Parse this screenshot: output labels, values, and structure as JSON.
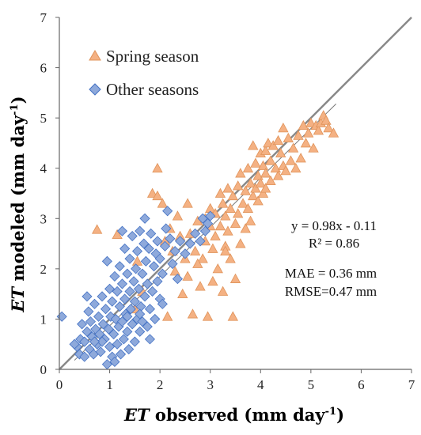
{
  "chart_data": {
    "type": "scatter",
    "xlim": [
      0,
      7
    ],
    "ylim": [
      0,
      7
    ],
    "x_ticks": [
      0,
      1,
      2,
      3,
      4,
      5,
      6,
      7
    ],
    "y_ticks": [
      0,
      1,
      2,
      3,
      4,
      5,
      6,
      7
    ],
    "grid": false,
    "legend_placement": "top-left",
    "xlabel": {
      "italic": "ET",
      "text": " observed (mm day",
      "sup": "-1",
      "end": ")"
    },
    "ylabel": {
      "italic": "ET",
      "text": " modeled (mm day",
      "sup": "-1",
      "end": ")"
    },
    "one_to_one_line": {
      "from": [
        0,
        0
      ],
      "to": [
        7,
        7
      ],
      "color": "#888888"
    },
    "fit_line": {
      "from": [
        0.3,
        0.18
      ],
      "to": [
        5.5,
        5.28
      ],
      "color": "#777777"
    },
    "annotations": {
      "equation": "y = 0.98x - 0.11",
      "r2": "R² = 0.86",
      "mae": "MAE = 0.36 mm",
      "rmse": "RMSE=0.47 mm"
    },
    "series": [
      {
        "name": "Spring season",
        "marker": "triangle",
        "color": "#F4B183",
        "stroke": "#E0935A",
        "points": [
          [
            0.75,
            2.78
          ],
          [
            1.15,
            2.68
          ],
          [
            1.55,
            2.15
          ],
          [
            1.65,
            1.55
          ],
          [
            1.5,
            1.2
          ],
          [
            1.85,
            3.5
          ],
          [
            1.95,
            3.45
          ],
          [
            1.95,
            4.0
          ],
          [
            2.05,
            3.3
          ],
          [
            2.1,
            2.55
          ],
          [
            2.15,
            1.05
          ],
          [
            2.2,
            2.8
          ],
          [
            2.25,
            2.35
          ],
          [
            2.3,
            1.95
          ],
          [
            2.35,
            3.05
          ],
          [
            2.4,
            2.65
          ],
          [
            2.45,
            1.5
          ],
          [
            2.5,
            2.2
          ],
          [
            2.55,
            3.3
          ],
          [
            2.55,
            1.85
          ],
          [
            2.6,
            2.7
          ],
          [
            2.65,
            1.1
          ],
          [
            2.7,
            2.35
          ],
          [
            2.75,
            2.95
          ],
          [
            2.8,
            1.65
          ],
          [
            2.85,
            2.2
          ],
          [
            2.9,
            3.0
          ],
          [
            2.9,
            2.55
          ],
          [
            2.95,
            1.05
          ],
          [
            3.0,
            2.85
          ],
          [
            3.0,
            3.2
          ],
          [
            3.05,
            2.4
          ],
          [
            3.05,
            1.75
          ],
          [
            3.1,
            3.1
          ],
          [
            3.1,
            2.65
          ],
          [
            3.15,
            2.0
          ],
          [
            3.2,
            3.5
          ],
          [
            3.2,
            2.85
          ],
          [
            3.25,
            3.3
          ],
          [
            3.25,
            1.55
          ],
          [
            3.3,
            2.45
          ],
          [
            3.3,
            3.05
          ],
          [
            3.35,
            3.6
          ],
          [
            3.35,
            2.75
          ],
          [
            3.4,
            3.2
          ],
          [
            3.4,
            2.2
          ],
          [
            3.45,
            1.05
          ],
          [
            3.45,
            3.45
          ],
          [
            3.5,
            2.9
          ],
          [
            3.5,
            1.8
          ],
          [
            3.55,
            3.65
          ],
          [
            3.55,
            3.1
          ],
          [
            3.6,
            2.5
          ],
          [
            3.6,
            3.9
          ],
          [
            3.65,
            3.3
          ],
          [
            3.7,
            3.55
          ],
          [
            3.7,
            2.8
          ],
          [
            3.75,
            4.0
          ],
          [
            3.75,
            3.2
          ],
          [
            3.8,
            3.7
          ],
          [
            3.8,
            2.95
          ],
          [
            3.85,
            3.45
          ],
          [
            3.9,
            4.1
          ],
          [
            3.9,
            3.6
          ],
          [
            3.95,
            3.85
          ],
          [
            3.95,
            3.35
          ],
          [
            4.0,
            4.3
          ],
          [
            4.0,
            3.7
          ],
          [
            4.05,
            4.05
          ],
          [
            4.05,
            3.5
          ],
          [
            4.1,
            4.35
          ],
          [
            4.1,
            3.9
          ],
          [
            4.15,
            4.5
          ],
          [
            4.2,
            4.15
          ],
          [
            4.2,
            3.75
          ],
          [
            4.25,
            4.45
          ],
          [
            4.3,
            4.0
          ],
          [
            4.35,
            4.55
          ],
          [
            4.35,
            3.85
          ],
          [
            4.4,
            4.3
          ],
          [
            4.45,
            4.8
          ],
          [
            4.45,
            4.05
          ],
          [
            4.5,
            3.95
          ],
          [
            4.55,
            4.6
          ],
          [
            4.6,
            4.15
          ],
          [
            4.65,
            4.4
          ],
          [
            4.7,
            4.0
          ],
          [
            4.75,
            4.65
          ],
          [
            4.8,
            4.2
          ],
          [
            4.85,
            4.85
          ],
          [
            4.9,
            4.5
          ],
          [
            4.95,
            4.7
          ],
          [
            5.0,
            4.9
          ],
          [
            5.05,
            4.4
          ],
          [
            5.1,
            4.85
          ],
          [
            5.15,
            4.75
          ],
          [
            5.2,
            4.9
          ],
          [
            5.25,
            5.05
          ],
          [
            5.3,
            4.95
          ],
          [
            5.35,
            4.8
          ],
          [
            5.45,
            4.7
          ],
          [
            3.85,
            4.45
          ],
          [
            4.1,
            3.6
          ],
          [
            3.3,
            2.35
          ],
          [
            2.75,
            2.1
          ]
        ]
      },
      {
        "name": "Other seasons",
        "marker": "diamond",
        "color": "#8EA9DB",
        "stroke": "#4472C4",
        "points": [
          [
            0.05,
            1.05
          ],
          [
            0.35,
            0.45
          ],
          [
            0.4,
            0.3
          ],
          [
            0.42,
            0.6
          ],
          [
            0.45,
            0.9
          ],
          [
            0.5,
            0.25
          ],
          [
            0.5,
            0.55
          ],
          [
            0.55,
            0.75
          ],
          [
            0.58,
            1.15
          ],
          [
            0.6,
            0.4
          ],
          [
            0.62,
            0.95
          ],
          [
            0.65,
            0.65
          ],
          [
            0.68,
            0.3
          ],
          [
            0.7,
            1.3
          ],
          [
            0.72,
            0.8
          ],
          [
            0.75,
            0.5
          ],
          [
            0.78,
            1.05
          ],
          [
            0.8,
            0.7
          ],
          [
            0.82,
            0.35
          ],
          [
            0.85,
            1.45
          ],
          [
            0.87,
            0.9
          ],
          [
            0.9,
            0.6
          ],
          [
            0.92,
            1.2
          ],
          [
            0.95,
            2.15
          ],
          [
            0.95,
            0.1
          ],
          [
            0.98,
            0.8
          ],
          [
            1.0,
            1.6
          ],
          [
            1.0,
            0.45
          ],
          [
            1.02,
            1.05
          ],
          [
            1.05,
            1.35
          ],
          [
            1.05,
            0.25
          ],
          [
            1.08,
            0.7
          ],
          [
            1.1,
            1.85
          ],
          [
            1.12,
            1.0
          ],
          [
            1.15,
            1.55
          ],
          [
            1.15,
            0.5
          ],
          [
            1.18,
            0.85
          ],
          [
            1.2,
            1.25
          ],
          [
            1.2,
            2.05
          ],
          [
            1.22,
            0.3
          ],
          [
            1.25,
            1.7
          ],
          [
            1.25,
            0.95
          ],
          [
            1.28,
            0.6
          ],
          [
            1.3,
            1.4
          ],
          [
            1.3,
            2.4
          ],
          [
            1.32,
            1.1
          ],
          [
            1.35,
            0.75
          ],
          [
            1.35,
            1.9
          ],
          [
            1.38,
            0.4
          ],
          [
            1.4,
            1.55
          ],
          [
            1.4,
            2.2
          ],
          [
            1.42,
            1.2
          ],
          [
            1.45,
            0.9
          ],
          [
            1.45,
            2.65
          ],
          [
            1.48,
            1.75
          ],
          [
            1.5,
            0.55
          ],
          [
            1.5,
            1.35
          ],
          [
            1.52,
            2.0
          ],
          [
            1.55,
            1.0
          ],
          [
            1.55,
            2.35
          ],
          [
            1.58,
            1.6
          ],
          [
            1.6,
            0.75
          ],
          [
            1.6,
            2.75
          ],
          [
            1.62,
            1.25
          ],
          [
            1.65,
            1.9
          ],
          [
            1.65,
            0.95
          ],
          [
            1.68,
            2.5
          ],
          [
            1.7,
            1.45
          ],
          [
            1.72,
            2.15
          ],
          [
            1.75,
            0.85
          ],
          [
            1.75,
            1.7
          ],
          [
            1.78,
            2.4
          ],
          [
            1.8,
            1.2
          ],
          [
            1.82,
            2.7
          ],
          [
            1.85,
            1.55
          ],
          [
            1.88,
            2.05
          ],
          [
            1.9,
            1.0
          ],
          [
            1.92,
            2.3
          ],
          [
            1.95,
            1.75
          ],
          [
            1.95,
            2.55
          ],
          [
            2.0,
            1.4
          ],
          [
            2.0,
            2.2
          ],
          [
            2.05,
            1.9
          ],
          [
            2.1,
            2.45
          ],
          [
            2.12,
            2.8
          ],
          [
            2.15,
            3.15
          ],
          [
            2.2,
            2.6
          ],
          [
            2.25,
            2.1
          ],
          [
            2.3,
            2.35
          ],
          [
            2.35,
            1.8
          ],
          [
            2.4,
            2.55
          ],
          [
            2.5,
            2.3
          ],
          [
            2.6,
            2.5
          ],
          [
            2.7,
            2.7
          ],
          [
            2.8,
            2.55
          ],
          [
            2.85,
            3.0
          ],
          [
            2.9,
            2.75
          ],
          [
            2.95,
            2.9
          ],
          [
            3.0,
            3.05
          ],
          [
            0.3,
            0.5
          ],
          [
            0.55,
            1.45
          ],
          [
            0.85,
            0.55
          ],
          [
            1.1,
            0.15
          ],
          [
            1.35,
            1.05
          ],
          [
            1.6,
            1.1
          ],
          [
            1.8,
            0.6
          ],
          [
            2.05,
            1.3
          ],
          [
            0.7,
            0.55
          ],
          [
            1.25,
            2.75
          ],
          [
            1.7,
            3.0
          ]
        ]
      }
    ]
  }
}
